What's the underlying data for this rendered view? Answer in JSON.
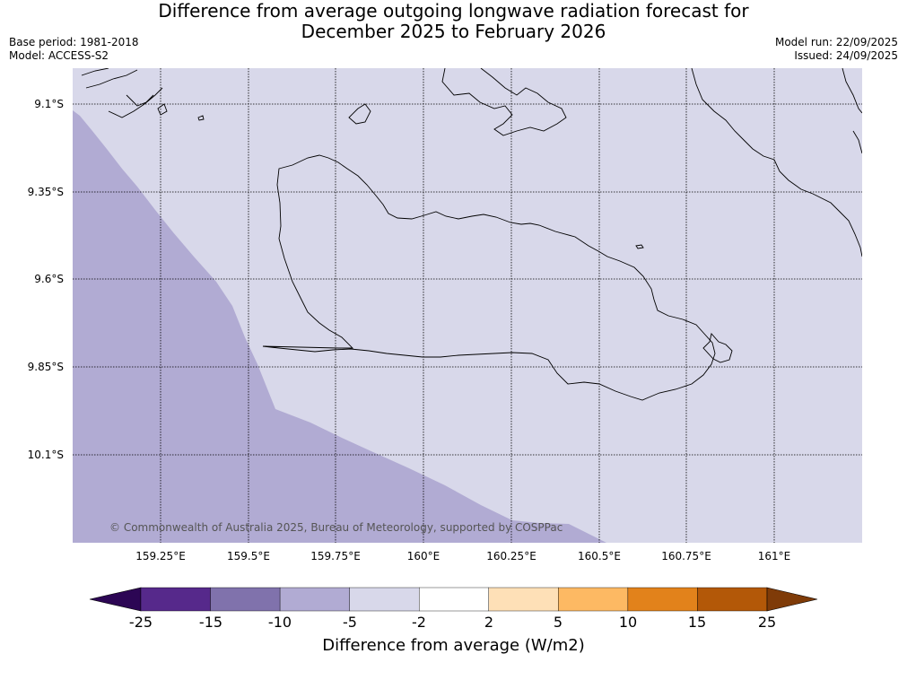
{
  "title": {
    "line1": "Difference from average outgoing longwave radiation forecast for",
    "line2": "December 2025 to February 2026"
  },
  "meta": {
    "base_period": "Base period: 1981-2018",
    "model": "Model: ACCESS-S2",
    "model_run": "Model run: 22/09/2025",
    "issued": "Issued: 24/09/2025"
  },
  "map": {
    "latitude_labels": [
      "9.1°S",
      "9.35°S",
      "9.6°S",
      "9.85°S",
      "10.1°S"
    ],
    "longitude_labels": [
      "159.25°E",
      "159.5°E",
      "159.75°E",
      "160°E",
      "160.25°E",
      "160.5°E",
      "160.75°E",
      "161°E"
    ],
    "copyright": "© Commonwealth of Australia 2025, Bureau of Meteorology, supported by COSPPac",
    "colors": {
      "anomaly_neg5_to_neg2": "#d8d8ea",
      "anomaly_neg10_to_neg5": "#b1abd3",
      "gridline": "#000000",
      "coastline": "#000000"
    }
  },
  "colorbar": {
    "tick_labels": [
      "-25",
      "-15",
      "-10",
      "-5",
      "-2",
      "2",
      "5",
      "10",
      "15",
      "25"
    ],
    "colors": [
      "#2c0654",
      "#56298b",
      "#8072ac",
      "#b1abd3",
      "#d8d8ea",
      "#ffffff",
      "#fee0b7",
      "#fdb963",
      "#e2821b",
      "#b35808",
      "#7f3b08"
    ],
    "label": "Difference from average (W/m2)"
  }
}
